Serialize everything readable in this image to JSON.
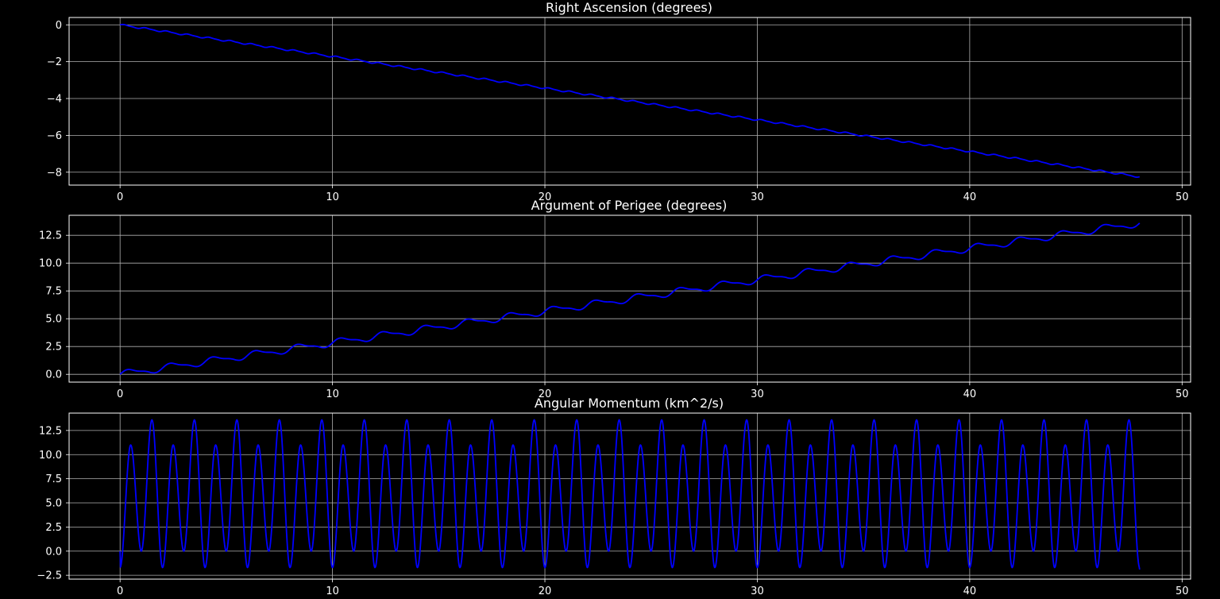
{
  "chart_data": [
    {
      "type": "line",
      "title": "Right Ascension (degrees)",
      "xlim": [
        -2.4,
        50.4
      ],
      "ylim": [
        -8.7,
        0.4
      ],
      "xticks": [
        0,
        10,
        20,
        30,
        40,
        50
      ],
      "yticks": [
        0,
        -2,
        -4,
        -6,
        -8
      ],
      "ytick_labels": [
        "0",
        "−2",
        "−4",
        "−6",
        "−8"
      ],
      "grid": true,
      "series": [
        {
          "color": "#0000ff",
          "x_range": [
            0,
            48
          ],
          "points": [
            [
              0,
              0
            ],
            [
              48,
              -8.25
            ]
          ],
          "ripple": {
            "amplitude": 0.04,
            "period": 1.0,
            "form": "staircase"
          }
        }
      ]
    },
    {
      "type": "line",
      "title": "Argument of Perigee (degrees)",
      "xlim": [
        -2.4,
        50.4
      ],
      "ylim": [
        -0.7,
        14.3
      ],
      "xticks": [
        0,
        10,
        20,
        30,
        40,
        50
      ],
      "yticks": [
        0.0,
        2.5,
        5.0,
        7.5,
        10.0,
        12.5
      ],
      "ytick_labels": [
        "0.0",
        "2.5",
        "5.0",
        "7.5",
        "10.0",
        "12.5"
      ],
      "grid": true,
      "series": [
        {
          "color": "#0000ff",
          "x_range": [
            0,
            48
          ],
          "points": [
            [
              0,
              0
            ],
            [
              48,
              13.6
            ]
          ],
          "ripple": {
            "amplitude": 0.28,
            "period": 2.0,
            "form": "staircase"
          }
        }
      ]
    },
    {
      "type": "line",
      "title": "Angular Momentum (km^2/s)",
      "xlim": [
        -2.4,
        50.4
      ],
      "ylim": [
        -2.9,
        14.3
      ],
      "xticks": [
        0,
        10,
        20,
        30,
        40,
        50
      ],
      "yticks": [
        -2.5,
        0.0,
        2.5,
        5.0,
        7.5,
        10.0,
        12.5
      ],
      "ytick_labels": [
        "−2.5",
        "0.0",
        "2.5",
        "5.0",
        "7.5",
        "10.0",
        "12.5"
      ],
      "grid": true,
      "series": [
        {
          "color": "#0000ff",
          "x_range": [
            0,
            48
          ],
          "period": 2.0,
          "first_peak": 11.0,
          "second_peak": 13.6,
          "min_after_first_peak": 0.0,
          "min_after_second_peak": -1.7,
          "start_value": 0.0,
          "end_value": -1.9
        }
      ]
    }
  ]
}
